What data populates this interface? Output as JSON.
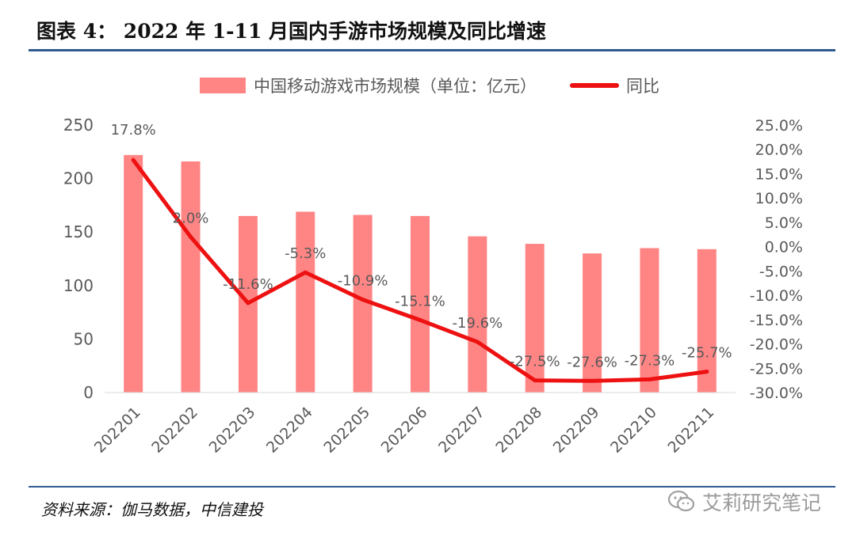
{
  "figure": {
    "title": "图表 4：  2022 年 1-11 月国内手游市场规模及同比增速",
    "source": "资料来源：伽马数据，中信建投",
    "watermark": "艾莉研究笔记",
    "watermark_icon": "wechat-icon"
  },
  "chart_data": {
    "type": "bar",
    "categories": [
      "202201",
      "202202",
      "202203",
      "202204",
      "202205",
      "202206",
      "202207",
      "202208",
      "202209",
      "202210",
      "202211"
    ],
    "series": [
      {
        "name": "中国移动游戏市场规模（单位：亿元）",
        "type": "bar",
        "axis": "left",
        "color": "#ff8585",
        "values": [
          222,
          216,
          165,
          169,
          166,
          165,
          146,
          139,
          130,
          135,
          134
        ]
      },
      {
        "name": "同比",
        "type": "line",
        "axis": "right",
        "color": "#ee1111",
        "values": [
          17.8,
          2.0,
          -11.6,
          -5.3,
          -10.9,
          -15.1,
          -19.6,
          -27.5,
          -27.6,
          -27.3,
          -25.7
        ],
        "labels": [
          "17.8%",
          "2.0%",
          "-11.6%",
          "-5.3%",
          "-10.9%",
          "-15.1%",
          "-19.6%",
          "-27.5%",
          "-27.6%",
          "-27.3%",
          "-25.7%"
        ]
      }
    ],
    "y_left": {
      "range": [
        0,
        250
      ],
      "ticks": [
        0,
        50,
        100,
        150,
        200,
        250
      ],
      "tick_labels": [
        "0",
        "50",
        "100",
        "150",
        "200",
        "250"
      ]
    },
    "y_right": {
      "range": [
        -30,
        25
      ],
      "ticks": [
        25,
        20,
        15,
        10,
        5,
        0,
        -5,
        -10,
        -15,
        -20,
        -25,
        -30
      ],
      "tick_labels": [
        "25.0%",
        "20.0%",
        "15.0%",
        "10.0%",
        "5.0%",
        "0.0%",
        "-5.0%",
        "-10.0%",
        "-15.0%",
        "-20.0%",
        "-25.0%",
        "-30.0%"
      ]
    },
    "legend_position": "top",
    "grid": false
  }
}
